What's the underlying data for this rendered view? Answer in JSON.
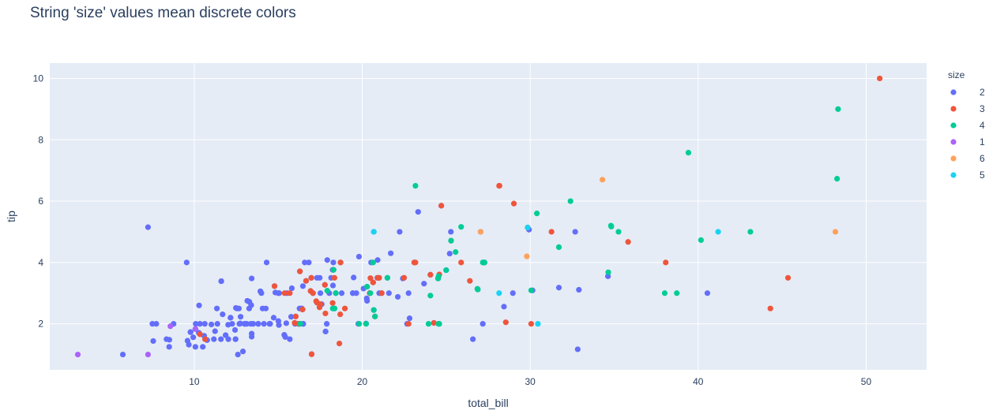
{
  "chart_data": {
    "type": "scatter",
    "title": "String 'size' values mean discrete colors",
    "xlabel": "total_bill",
    "ylabel": "tip",
    "xlim": [
      1.4,
      53.6
    ],
    "ylim": [
      0.5,
      10.5
    ],
    "x_ticks": [
      10,
      20,
      30,
      40,
      50
    ],
    "y_ticks": [
      2,
      4,
      6,
      8,
      10
    ],
    "grid": true,
    "legend_title": "size",
    "legend_position": "right",
    "background": "#E5ECF6",
    "series": [
      {
        "name": "2",
        "color": "#636EFA",
        "points": [
          [
            7.25,
            5.15
          ],
          [
            9.55,
            4.0
          ],
          [
            7.74,
            2.0
          ],
          [
            8.52,
            1.48
          ],
          [
            8.51,
            1.25
          ],
          [
            8.35,
            1.5
          ],
          [
            7.51,
            2.0
          ],
          [
            7.56,
            1.44
          ],
          [
            5.75,
            1.0
          ],
          [
            9.6,
            1.45
          ],
          [
            9.78,
            1.73
          ],
          [
            10.07,
            1.83
          ],
          [
            10.27,
            1.71
          ],
          [
            10.34,
            2.0
          ],
          [
            10.33,
            1.67
          ],
          [
            10.51,
            1.25
          ],
          [
            10.59,
            1.61
          ],
          [
            10.63,
            2.0
          ],
          [
            10.65,
            1.5
          ],
          [
            10.77,
            1.47
          ],
          [
            10.29,
            2.6
          ],
          [
            11.02,
            1.98
          ],
          [
            11.17,
            1.5
          ],
          [
            11.24,
            1.76
          ],
          [
            11.35,
            2.5
          ],
          [
            11.38,
            2.0
          ],
          [
            11.59,
            1.5
          ],
          [
            11.61,
            3.39
          ],
          [
            11.87,
            1.63
          ],
          [
            12.03,
            1.5
          ],
          [
            12.16,
            2.2
          ],
          [
            12.26,
            2.0
          ],
          [
            12.43,
            1.8
          ],
          [
            12.46,
            1.5
          ],
          [
            12.54,
            2.5
          ],
          [
            12.6,
            1.0
          ],
          [
            12.66,
            2.5
          ],
          [
            12.69,
            2.0
          ],
          [
            12.74,
            2.01
          ],
          [
            12.76,
            2.23
          ],
          [
            12.9,
            1.1
          ],
          [
            12.48,
            2.52
          ],
          [
            13.0,
            2.0
          ],
          [
            13.03,
            2.0
          ],
          [
            13.13,
            2.0
          ],
          [
            13.27,
            2.5
          ],
          [
            13.28,
            2.72
          ],
          [
            13.37,
            2.0
          ],
          [
            13.39,
            2.61
          ],
          [
            13.42,
            3.48
          ],
          [
            13.42,
            1.58
          ],
          [
            13.51,
            2.0
          ],
          [
            13.81,
            2.0
          ],
          [
            13.94,
            3.06
          ],
          [
            14.07,
            2.5
          ],
          [
            14.15,
            2.0
          ],
          [
            14.26,
            2.5
          ],
          [
            14.31,
            4.0
          ],
          [
            14.48,
            2.0
          ],
          [
            14.52,
            2.0
          ],
          [
            14.73,
            2.2
          ],
          [
            14.78,
            3.23
          ],
          [
            15.04,
            1.96
          ],
          [
            15.06,
            3.0
          ],
          [
            15.36,
            1.64
          ],
          [
            15.42,
            1.57
          ],
          [
            15.53,
            3.0
          ],
          [
            15.69,
            1.5
          ],
          [
            15.77,
            2.23
          ],
          [
            15.98,
            2.03
          ],
          [
            16.0,
            2.0
          ],
          [
            16.04,
            2.24
          ],
          [
            16.29,
            3.71
          ],
          [
            16.31,
            2.0
          ],
          [
            16.4,
            2.5
          ],
          [
            16.45,
            2.47
          ],
          [
            16.47,
            3.23
          ],
          [
            16.49,
            2.0
          ],
          [
            16.58,
            4.0
          ],
          [
            16.66,
            3.4
          ],
          [
            16.99,
            1.01
          ],
          [
            17.29,
            2.71
          ],
          [
            17.31,
            3.5
          ],
          [
            17.46,
            2.54
          ],
          [
            17.51,
            3.0
          ],
          [
            17.59,
            2.64
          ],
          [
            17.78,
            3.27
          ],
          [
            17.82,
            1.75
          ],
          [
            17.89,
            2.0
          ],
          [
            18.04,
            3.0
          ],
          [
            18.15,
            3.5
          ],
          [
            18.24,
            3.76
          ],
          [
            18.28,
            4.0
          ],
          [
            18.29,
            3.76
          ],
          [
            18.71,
            4.0
          ],
          [
            18.35,
            2.5
          ],
          [
            18.43,
            3.0
          ],
          [
            19.44,
            3.0
          ],
          [
            19.49,
            3.51
          ],
          [
            19.65,
            3.0
          ],
          [
            19.81,
            4.19
          ],
          [
            20.08,
            3.15
          ],
          [
            20.23,
            2.01
          ],
          [
            20.27,
            2.83
          ],
          [
            20.29,
            3.21
          ],
          [
            20.65,
            3.35
          ],
          [
            20.69,
            2.45
          ],
          [
            20.9,
            3.5
          ],
          [
            21.01,
            3.0
          ],
          [
            21.16,
            3.0
          ],
          [
            21.5,
            3.5
          ],
          [
            21.7,
            4.3
          ],
          [
            22.12,
            2.88
          ],
          [
            22.42,
            3.48
          ],
          [
            22.49,
            3.5
          ],
          [
            22.76,
            3.0
          ],
          [
            23.1,
            4.0
          ],
          [
            23.68,
            3.31
          ],
          [
            24.06,
            3.6
          ],
          [
            24.27,
            2.03
          ],
          [
            24.52,
            3.48
          ],
          [
            24.55,
            2.0
          ],
          [
            25.0,
            3.75
          ],
          [
            25.21,
            4.29
          ],
          [
            25.28,
            5.0
          ],
          [
            26.59,
            1.5
          ],
          [
            26.88,
            3.12
          ],
          [
            27.05,
            5.0
          ],
          [
            27.2,
            4.0
          ],
          [
            28.44,
            2.56
          ],
          [
            28.97,
            3.0
          ],
          [
            29.93,
            5.07
          ],
          [
            30.14,
            3.09
          ],
          [
            31.71,
            3.18
          ],
          [
            32.68,
            5.0
          ],
          [
            32.83,
            1.17
          ],
          [
            34.63,
            3.55
          ],
          [
            40.55,
            3.0
          ],
          [
            15.81,
            3.16
          ],
          [
            18.26,
            3.25
          ],
          [
            24.71,
            5.85
          ],
          [
            22.23,
            5.0
          ],
          [
            20.92,
            4.08
          ],
          [
            23.33,
            5.65
          ],
          [
            8.77,
            2.0
          ],
          [
            10.09,
            2.0
          ],
          [
            12.02,
            1.97
          ],
          [
            9.68,
            1.32
          ],
          [
            11.69,
            2.31
          ],
          [
            14.0,
            3.0
          ],
          [
            16.93,
            3.07
          ],
          [
            13.16,
            2.75
          ],
          [
            32.9,
            3.11
          ],
          [
            20.53,
            4.0
          ],
          [
            19.77,
            2.0
          ],
          [
            12.74,
            2.01
          ],
          [
            13.0,
            2.0
          ],
          [
            16.4,
            2.5
          ],
          [
            15.0,
            3.0
          ],
          [
            14.83,
            3.02
          ],
          [
            17.07,
            3.0
          ],
          [
            15.48,
            2.02
          ],
          [
            20.45,
            3.0
          ],
          [
            9.94,
            1.56
          ],
          [
            27.28,
            4.0
          ],
          [
            10.07,
            1.25
          ],
          [
            19.44,
            3.0
          ],
          [
            22.82,
            2.18
          ],
          [
            17.92,
            4.08
          ],
          [
            18.78,
            3.0
          ],
          [
            13.81,
            2.0
          ],
          [
            21.59,
            3.0
          ],
          [
            27.18,
            2.0
          ],
          [
            16.27,
            2.5
          ],
          [
            22.67,
            2.0
          ],
          [
            17.82,
            1.75
          ],
          [
            21.01,
            3.5
          ],
          [
            11.87,
            1.63
          ],
          [
            15.01,
            2.09
          ],
          [
            12.46,
            1.5
          ],
          [
            16.97,
            3.5
          ],
          [
            13.42,
            1.68
          ],
          [
            16.21,
            2.0
          ],
          [
            13.39,
            2.61
          ],
          [
            20.29,
            2.75
          ],
          [
            16.82,
            4.0
          ],
          [
            17.47,
            3.5
          ],
          [
            13.94,
            3.06
          ],
          [
            9.78,
            1.73
          ],
          [
            11.61,
            3.39
          ],
          [
            10.07,
            1.83
          ],
          [
            16.49,
            2.0
          ],
          [
            20.69,
            5.0
          ],
          [
            12.16,
            2.2
          ]
        ]
      },
      {
        "name": "3",
        "color": "#EF553B",
        "points": [
          [
            10.34,
            1.66
          ],
          [
            16.29,
            3.71
          ],
          [
            16.97,
            3.5
          ],
          [
            14.78,
            3.23
          ],
          [
            15.98,
            2.03
          ],
          [
            16.04,
            2.24
          ],
          [
            16.45,
            2.47
          ],
          [
            16.66,
            3.4
          ],
          [
            17.07,
            3.0
          ],
          [
            17.26,
            2.74
          ],
          [
            17.51,
            2.64
          ],
          [
            17.81,
            2.34
          ],
          [
            17.78,
            3.27
          ],
          [
            18.69,
            2.31
          ],
          [
            18.35,
            3.5
          ],
          [
            18.29,
            3.76
          ],
          [
            18.71,
            4.0
          ],
          [
            18.64,
            1.36
          ],
          [
            20.45,
            3.0
          ],
          [
            20.65,
            3.35
          ],
          [
            20.76,
            2.24
          ],
          [
            20.92,
            3.5
          ],
          [
            21.01,
            3.5
          ],
          [
            22.76,
            2.0
          ],
          [
            23.1,
            4.0
          ],
          [
            24.06,
            3.6
          ],
          [
            24.59,
            3.61
          ],
          [
            24.52,
            3.48
          ],
          [
            25.89,
            4.0
          ],
          [
            26.41,
            3.4
          ],
          [
            28.15,
            6.5
          ],
          [
            28.55,
            2.05
          ],
          [
            29.03,
            5.92
          ],
          [
            30.06,
            2.0
          ],
          [
            31.27,
            5.0
          ],
          [
            35.83,
            4.67
          ],
          [
            38.07,
            4.0
          ],
          [
            44.3,
            2.5
          ],
          [
            45.35,
            3.5
          ],
          [
            50.81,
            10.0
          ],
          [
            16.93,
            3.07
          ],
          [
            15.69,
            3.0
          ],
          [
            16.21,
            2.0
          ],
          [
            10.65,
            1.5
          ],
          [
            15.38,
            3.0
          ],
          [
            18.97,
            2.5
          ],
          [
            20.49,
            3.49
          ],
          [
            24.27,
            2.03
          ],
          [
            17.31,
            2.69
          ],
          [
            16.99,
            1.01
          ],
          [
            17.46,
            2.54
          ],
          [
            18.24,
            2.68
          ],
          [
            21.16,
            3.0
          ],
          [
            22.49,
            3.5
          ],
          [
            23.17,
            4.0
          ],
          [
            24.71,
            5.85
          ],
          [
            25.29,
            4.71
          ],
          [
            26.86,
            3.14
          ],
          [
            28.17,
            6.5
          ],
          [
            29.85,
            5.14
          ]
        ]
      },
      {
        "name": "4",
        "color": "#00CC96",
        "points": [
          [
            16.31,
            2.0
          ],
          [
            17.92,
            3.08
          ],
          [
            18.43,
            3.0
          ],
          [
            18.29,
            3.76
          ],
          [
            18.25,
            2.5
          ],
          [
            19.82,
            2.0
          ],
          [
            20.23,
            2.0
          ],
          [
            20.49,
            3.0
          ],
          [
            20.76,
            2.24
          ],
          [
            20.65,
            4.0
          ],
          [
            20.69,
            2.45
          ],
          [
            21.5,
            3.5
          ],
          [
            23.17,
            6.5
          ],
          [
            23.95,
            2.0
          ],
          [
            24.06,
            2.92
          ],
          [
            24.55,
            3.55
          ],
          [
            24.59,
            2.0
          ],
          [
            24.52,
            3.48
          ],
          [
            25.0,
            3.75
          ],
          [
            25.29,
            4.71
          ],
          [
            25.56,
            4.34
          ],
          [
            25.89,
            5.16
          ],
          [
            26.88,
            3.12
          ],
          [
            27.28,
            4.0
          ],
          [
            27.18,
            4.0
          ],
          [
            30.06,
            3.09
          ],
          [
            30.4,
            5.6
          ],
          [
            31.71,
            4.5
          ],
          [
            32.4,
            6.0
          ],
          [
            34.81,
            5.2
          ],
          [
            34.83,
            5.17
          ],
          [
            34.65,
            3.68
          ],
          [
            35.26,
            5.0
          ],
          [
            38.01,
            3.0
          ],
          [
            38.73,
            3.0
          ],
          [
            39.42,
            7.58
          ],
          [
            40.17,
            4.73
          ],
          [
            43.11,
            5.0
          ],
          [
            48.27,
            6.73
          ],
          [
            48.33,
            9.0
          ],
          [
            24.55,
            2.0
          ],
          [
            18.35,
            2.5
          ],
          [
            20.29,
            3.21
          ],
          [
            26.86,
            3.14
          ]
        ]
      },
      {
        "name": "1",
        "color": "#AB63FA",
        "points": [
          [
            3.07,
            1.0
          ],
          [
            7.25,
            1.0
          ],
          [
            8.58,
            1.92
          ],
          [
            10.07,
            1.83
          ]
        ]
      },
      {
        "name": "6",
        "color": "#FFA15A",
        "points": [
          [
            27.05,
            5.0
          ],
          [
            29.8,
            4.2
          ],
          [
            34.3,
            6.7
          ],
          [
            48.17,
            5.0
          ]
        ]
      },
      {
        "name": "5",
        "color": "#19D3F3",
        "points": [
          [
            20.69,
            5.0
          ],
          [
            28.15,
            3.0
          ],
          [
            29.85,
            5.14
          ],
          [
            30.46,
            2.0
          ],
          [
            41.19,
            5.0
          ]
        ]
      }
    ]
  }
}
